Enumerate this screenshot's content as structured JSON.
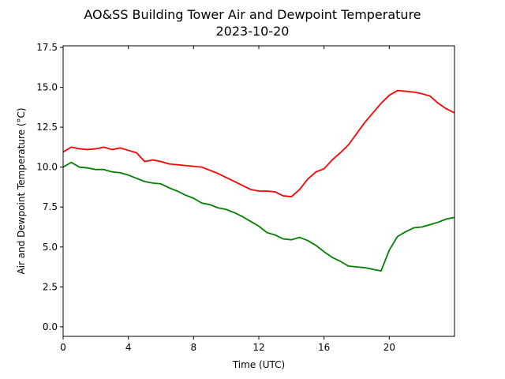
{
  "chart_data": {
    "type": "line",
    "title": "AO&SS Building Tower Air and Dewpoint Temperature",
    "subtitle": "2023-10-20",
    "xlabel": "Time (UTC)",
    "ylabel": "Air and Dewpoint Temperature (°C)",
    "xlim": [
      0,
      24
    ],
    "ylim": [
      -0.6,
      17.6
    ],
    "x_ticks": [
      0,
      4,
      8,
      12,
      16,
      20
    ],
    "x_tick_labels": [
      "0",
      "4",
      "8",
      "12",
      "16",
      "20"
    ],
    "y_ticks": [
      0,
      2.5,
      5,
      7.5,
      10,
      12.5,
      15,
      17.5
    ],
    "y_tick_labels": [
      "0.0",
      "2.5",
      "5.0",
      "7.5",
      "10.0",
      "12.5",
      "15.0",
      "17.5"
    ],
    "grid": false,
    "legend": "none",
    "x": [
      0,
      0.5,
      1,
      1.5,
      2,
      2.5,
      3,
      3.5,
      4,
      4.5,
      5,
      5.5,
      6,
      6.5,
      7,
      7.5,
      8,
      8.5,
      9,
      9.5,
      10,
      10.5,
      11,
      11.5,
      12,
      12.5,
      13,
      13.5,
      14,
      14.5,
      15,
      15.5,
      16,
      16.5,
      17,
      17.5,
      18,
      18.5,
      19,
      19.5,
      20,
      20.5,
      21,
      21.5,
      22,
      22.5,
      23,
      23.5,
      24
    ],
    "series": [
      {
        "color": "#ff0000",
        "values": [
          10.95,
          11.25,
          11.15,
          11.1,
          11.15,
          11.25,
          11.1,
          11.2,
          11.05,
          10.9,
          10.35,
          10.45,
          10.35,
          10.2,
          10.15,
          10.1,
          10.05,
          10.0,
          9.8,
          9.6,
          9.35,
          9.1,
          8.85,
          8.6,
          8.5,
          8.5,
          8.45,
          8.2,
          8.15,
          8.6,
          9.25,
          9.7,
          9.9,
          10.45,
          10.9,
          11.4,
          12.1,
          12.8,
          13.4,
          14.0,
          14.5,
          14.8,
          14.75,
          14.7,
          14.6,
          14.45,
          14.0,
          13.65,
          13.4
        ]
      },
      {
        "color": "#008000",
        "values": [
          10.0,
          10.3,
          10.0,
          9.95,
          9.85,
          9.85,
          9.7,
          9.65,
          9.5,
          9.3,
          9.1,
          9.0,
          8.95,
          8.7,
          8.5,
          8.25,
          8.05,
          7.75,
          7.65,
          7.45,
          7.35,
          7.15,
          6.9,
          6.6,
          6.3,
          5.9,
          5.75,
          5.5,
          5.45,
          5.6,
          5.4,
          5.1,
          4.7,
          4.35,
          4.1,
          3.8,
          3.75,
          3.7,
          3.6,
          3.5,
          4.8,
          5.65,
          5.95,
          6.2,
          6.25,
          6.4,
          6.55,
          6.75,
          6.85
        ]
      }
    ]
  }
}
